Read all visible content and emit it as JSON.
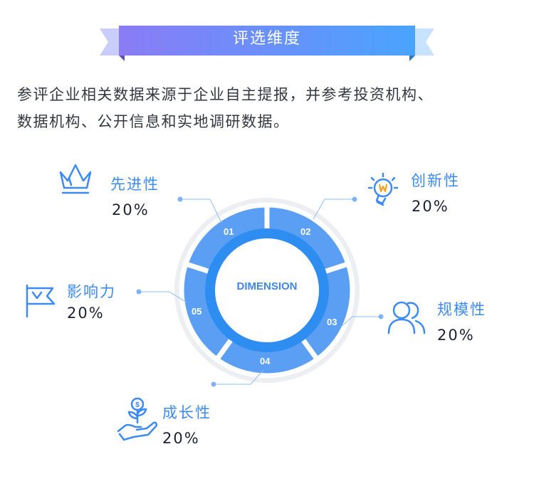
{
  "banner": {
    "title": "评选维度"
  },
  "intro": {
    "line1": "参评企业相关数据来源于企业自主提报，并参考投资机构、",
    "line2": "数据机构、公开信息和实地调研数据。"
  },
  "center": {
    "label": "DIMENSION"
  },
  "segments": [
    {
      "number": "01"
    },
    {
      "number": "02"
    },
    {
      "number": "03"
    },
    {
      "number": "04"
    },
    {
      "number": "05"
    }
  ],
  "dimensions": [
    {
      "name": "先进性",
      "percent": "20%",
      "icon": "crown-icon"
    },
    {
      "name": "创新性",
      "percent": "20%",
      "icon": "lightbulb-icon"
    },
    {
      "name": "规模性",
      "percent": "20%",
      "icon": "users-icon"
    },
    {
      "name": "成长性",
      "percent": "20%",
      "icon": "money-plant-hand-icon"
    },
    {
      "name": "影响力",
      "percent": "20%",
      "icon": "flag-icon"
    }
  ],
  "colors": {
    "banner_start": "#8a7cf5",
    "banner_end": "#49a4ff",
    "segment": "#5a9ff4",
    "segment_inner": "#2e8df0",
    "accent_text": "#3b8af5",
    "body_text": "#333740"
  }
}
